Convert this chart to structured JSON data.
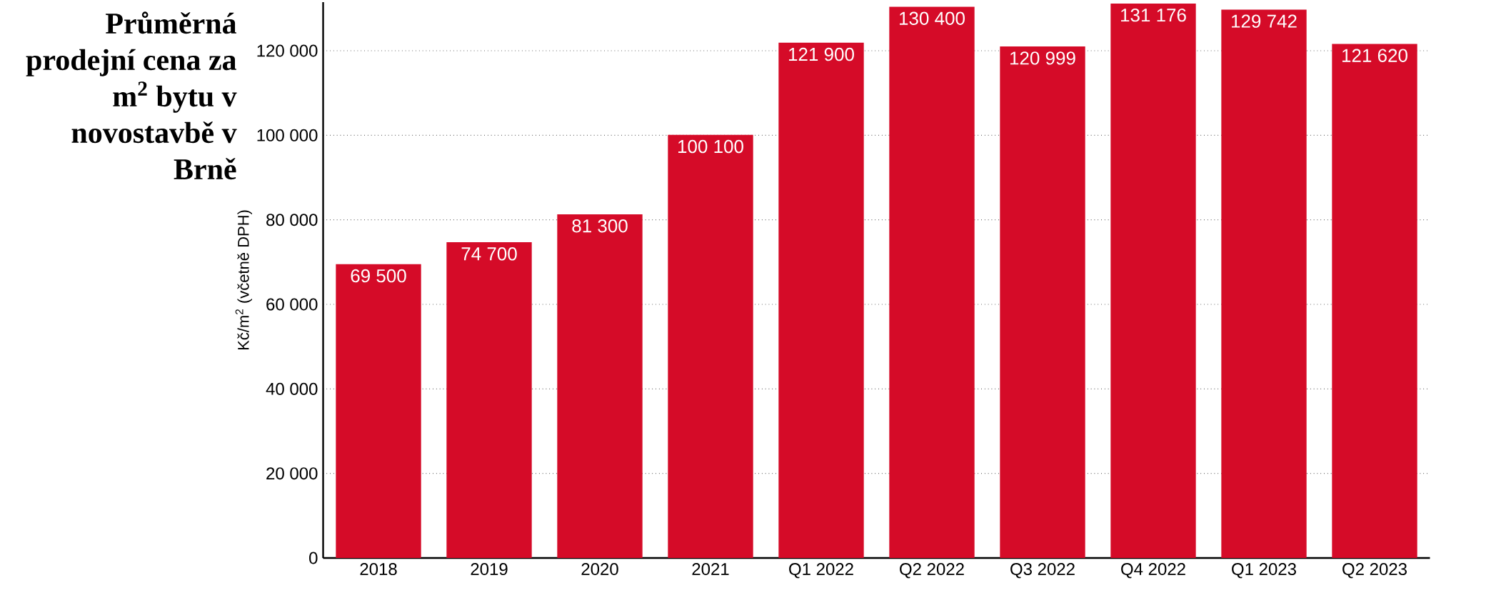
{
  "chart_data": {
    "type": "bar",
    "title": "Průměrná prodejní cena za m$^{2}$ bytu v novostavbě v Brně",
    "ylabel": "Kč/m$^{2}$ (včetně DPH)",
    "categories": [
      "2018",
      "2019",
      "2020",
      "2021",
      "Q1 2022",
      "Q2 2022",
      "Q3 2022",
      "Q4 2022",
      "Q1 2023",
      "Q2 2023"
    ],
    "values": [
      69500,
      74700,
      81300,
      100100,
      121900,
      130400,
      120999,
      131176,
      129742,
      121620
    ],
    "value_labels": [
      "69 500",
      "74 700",
      "81 300",
      "100 100",
      "121 900",
      "130 400",
      "120 999",
      "131 176",
      "129 742",
      "121 620"
    ],
    "color": "#d50b28",
    "ylim": [
      0,
      131500
    ],
    "yticks": [
      0,
      {
        "value": 20000,
        "label": "20 000"
      },
      {
        "value": 40000,
        "label": "40 000"
      },
      {
        "value": 60000,
        "label": "60 000"
      },
      {
        "value": 80000,
        "label": "80 000"
      },
      {
        "value": 100000,
        "label": "100 000"
      },
      {
        "value": 120000,
        "label": "120 000"
      }
    ],
    "grid": "y"
  }
}
